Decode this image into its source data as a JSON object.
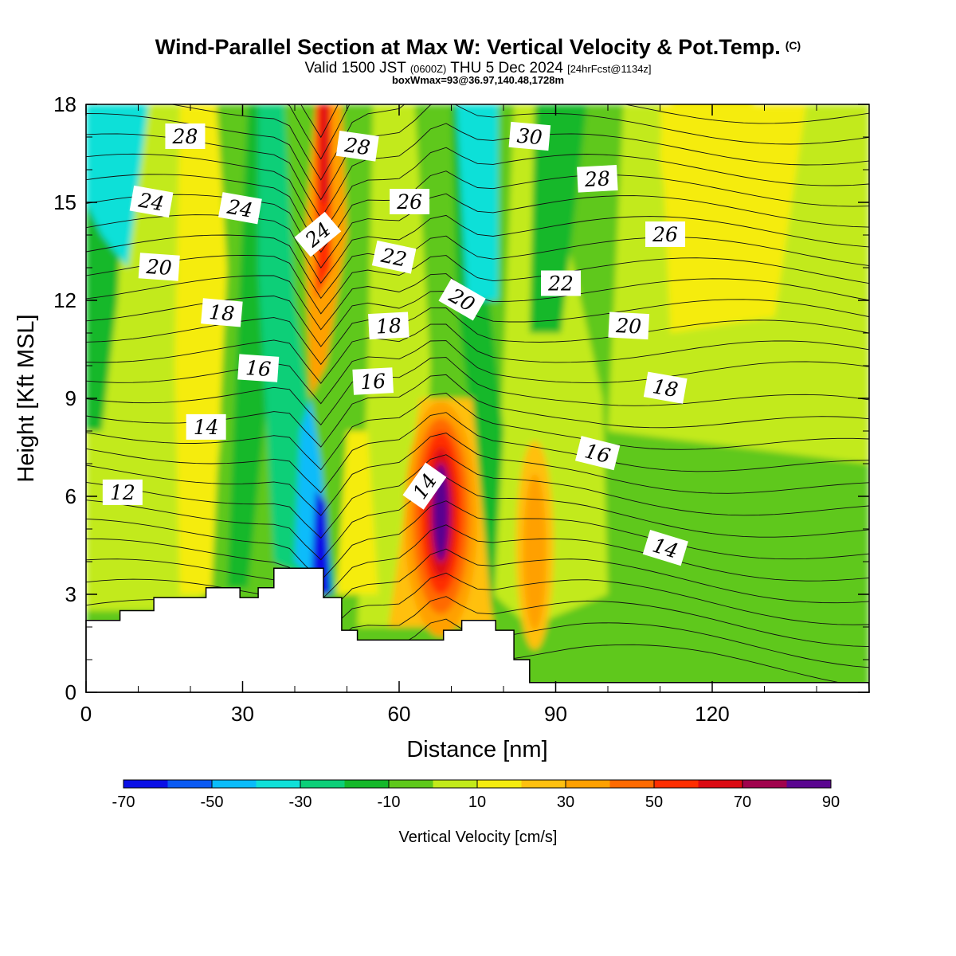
{
  "header": {
    "title": "Wind-Parallel Section at Max W: Vertical Velocity & Pot.Temp.",
    "copyright": "(C)",
    "valid_prefix": "Valid 1500 JST",
    "valid_z": "(0600Z)",
    "valid_date": "THU 5 Dec 2024",
    "valid_fcst": "[24hrFcst@1134z]",
    "box_info": "boxWmax=93@36.97,140.48,1728m"
  },
  "chart_data": {
    "type": "heatmap",
    "xlabel": "Distance [nm]",
    "ylabel": "Height [Kft MSL]",
    "xlim": [
      0,
      150
    ],
    "ylim": [
      0,
      18
    ],
    "x_ticks": [
      0,
      30,
      60,
      90,
      120
    ],
    "y_ticks": [
      0,
      3,
      6,
      9,
      12,
      15,
      18
    ],
    "colorbar": {
      "label": "Vertical Velocity [cm/s]",
      "ticks": [
        -70,
        -50,
        -30,
        -10,
        10,
        30,
        50,
        70,
        90
      ],
      "levels": [
        -70,
        -60,
        -50,
        -40,
        -30,
        -20,
        -10,
        0,
        10,
        20,
        30,
        40,
        50,
        60,
        70,
        80,
        90
      ],
      "colors": [
        "#0b10e6",
        "#0a5af2",
        "#0abcfa",
        "#10e0d8",
        "#0ccf78",
        "#14b82a",
        "#5ec81a",
        "#c2ea1a",
        "#f5ec10",
        "#ffc010",
        "#ffa000",
        "#ff6a00",
        "#ff2e00",
        "#dc0a12",
        "#a0024c",
        "#5a0690"
      ]
    },
    "vertical_velocity_features": [
      {
        "x": 45,
        "y": 5.3,
        "w": -70
      },
      {
        "x": 68,
        "y": 5.5,
        "w": 90
      },
      {
        "x": 45,
        "y": 17.0,
        "w": 70
      },
      {
        "x": 86,
        "y": 4.5,
        "w": 40
      },
      {
        "x": 75,
        "y": 16.5,
        "w": -40
      },
      {
        "x": 6,
        "y": 17.0,
        "w": -30
      },
      {
        "x": 120,
        "y": 16.5,
        "w": 15
      }
    ],
    "terrain": {
      "x": [
        0,
        6.5,
        6.5,
        13,
        13,
        23,
        23,
        29.5,
        29.5,
        33,
        33,
        36,
        36,
        45.5,
        45.5,
        49,
        49,
        52,
        52,
        68.5,
        68.5,
        72,
        72,
        78.5,
        78.5,
        82,
        82,
        85,
        85,
        150
      ],
      "y": [
        2.2,
        2.2,
        2.5,
        2.5,
        2.9,
        2.9,
        3.2,
        3.2,
        2.9,
        2.9,
        3.2,
        3.2,
        3.8,
        3.8,
        2.9,
        2.9,
        1.9,
        1.9,
        1.6,
        1.6,
        1.9,
        1.9,
        2.2,
        2.2,
        1.9,
        1.9,
        1.0,
        1.0,
        0.3,
        0.3
      ]
    },
    "theta_contour_labels": [
      {
        "text": "28",
        "x": 19,
        "y": 17.0,
        "rot": 0
      },
      {
        "text": "28",
        "x": 52,
        "y": 16.7,
        "rot": 8
      },
      {
        "text": "30",
        "x": 85,
        "y": 17.0,
        "rot": 5
      },
      {
        "text": "24",
        "x": 12.5,
        "y": 15.0,
        "rot": 10
      },
      {
        "text": "24",
        "x": 29.5,
        "y": 14.8,
        "rot": 10
      },
      {
        "text": "24",
        "x": 44.5,
        "y": 14.0,
        "rot": -40
      },
      {
        "text": "26",
        "x": 62,
        "y": 15.0,
        "rot": 0
      },
      {
        "text": "28",
        "x": 98,
        "y": 15.7,
        "rot": -3
      },
      {
        "text": "26",
        "x": 111,
        "y": 14.0,
        "rot": 0
      },
      {
        "text": "20",
        "x": 14,
        "y": 13.0,
        "rot": 4
      },
      {
        "text": "22",
        "x": 59,
        "y": 13.3,
        "rot": 12
      },
      {
        "text": "20",
        "x": 72,
        "y": 12.0,
        "rot": 30
      },
      {
        "text": "22",
        "x": 91,
        "y": 12.5,
        "rot": 0
      },
      {
        "text": "18",
        "x": 26,
        "y": 11.6,
        "rot": 5
      },
      {
        "text": "18",
        "x": 58,
        "y": 11.2,
        "rot": -3
      },
      {
        "text": "20",
        "x": 104,
        "y": 11.2,
        "rot": 3
      },
      {
        "text": "16",
        "x": 33,
        "y": 9.9,
        "rot": 4
      },
      {
        "text": "16",
        "x": 55,
        "y": 9.5,
        "rot": -3
      },
      {
        "text": "18",
        "x": 111,
        "y": 9.3,
        "rot": 10
      },
      {
        "text": "14",
        "x": 23,
        "y": 8.1,
        "rot": 0
      },
      {
        "text": "16",
        "x": 98,
        "y": 7.3,
        "rot": 14
      },
      {
        "text": "14",
        "x": 65,
        "y": 6.3,
        "rot": -55
      },
      {
        "text": "12",
        "x": 7,
        "y": 6.1,
        "rot": 0
      },
      {
        "text": "14",
        "x": 111,
        "y": 4.4,
        "rot": 17
      }
    ]
  }
}
